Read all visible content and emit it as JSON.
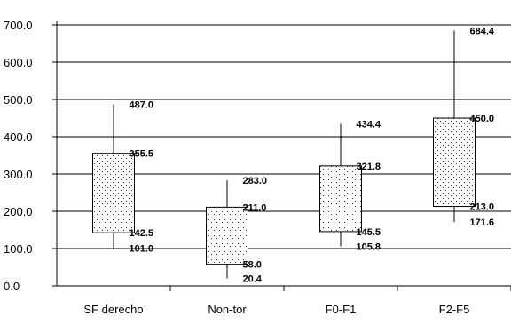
{
  "chart_data": {
    "type": "boxplot",
    "title": "",
    "xlabel": "",
    "ylabel": "",
    "ylim": [
      0,
      700
    ],
    "y_ticks": [
      "0.0",
      "100.0",
      "200.0",
      "300.0",
      "400.0",
      "500.0",
      "600.0",
      "700.0"
    ],
    "categories": [
      "SF derecho",
      "Non-tor",
      "F0-F1",
      "F2-F5"
    ],
    "series": [
      {
        "category": "SF derecho",
        "max": 487.0,
        "q3": 355.5,
        "q1": 142.5,
        "min": 101.0,
        "labels": {
          "max": "487.0",
          "q3": "355.5",
          "q1": "142.5",
          "min": "101.0"
        }
      },
      {
        "category": "Non-tor",
        "max": 283.0,
        "q3": 211.0,
        "q1": 58.0,
        "min": 20.4,
        "labels": {
          "max": "283.0",
          "q3": "211.0",
          "q1": "58.0",
          "min": "20.4"
        }
      },
      {
        "category": "F0-F1",
        "max": 434.4,
        "q3": 321.8,
        "q1": 145.5,
        "min": 105.8,
        "labels": {
          "max": "434.4",
          "q3": "321.8",
          "q1": "145.5",
          "min": "105.8"
        }
      },
      {
        "category": "F2-F5",
        "max": 684.4,
        "q3": 450.0,
        "q1": 213.0,
        "min": 171.6,
        "labels": {
          "max": "684.4",
          "q3": "450.0",
          "q1": "213.0",
          "min": "171.6"
        }
      }
    ],
    "grid": true,
    "legend": "none",
    "box_fill": "dotted",
    "colors": {
      "grid": "#000000",
      "box_stroke": "#000000",
      "box_dots": "#000000",
      "background": "#ffffff"
    }
  }
}
